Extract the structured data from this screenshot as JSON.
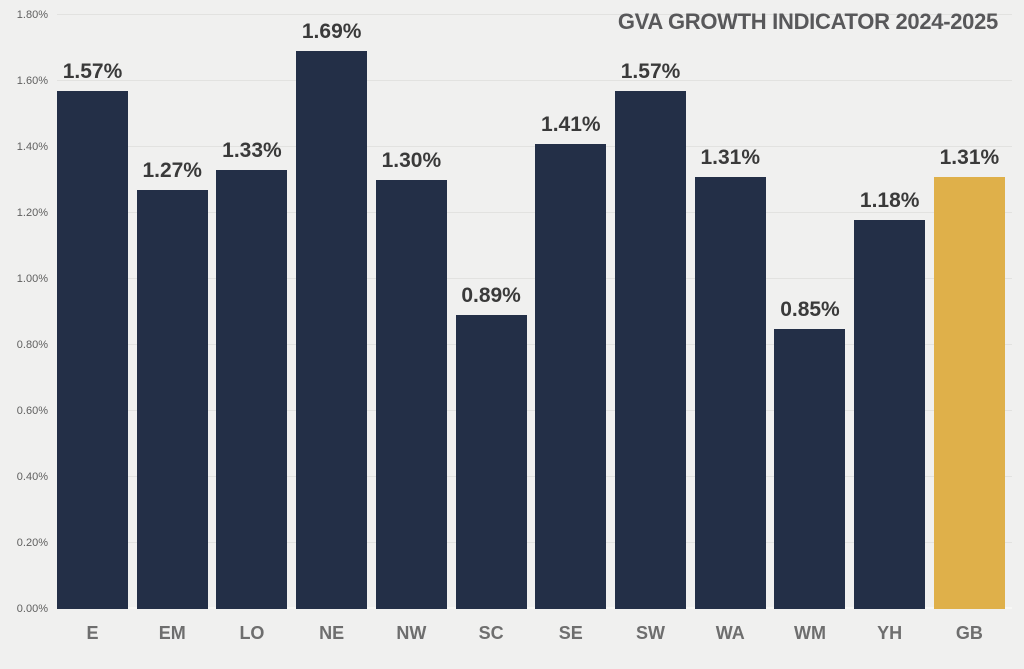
{
  "title": "GVA GROWTH INDICATOR 2024-2025",
  "chart_data": {
    "type": "bar",
    "title": "GVA GROWTH INDICATOR 2024-2025",
    "categories": [
      "E",
      "EM",
      "LO",
      "NE",
      "NW",
      "SC",
      "SE",
      "SW",
      "WA",
      "WM",
      "YH",
      "GB"
    ],
    "values": [
      1.57,
      1.27,
      1.33,
      1.69,
      1.3,
      0.89,
      1.41,
      1.57,
      1.31,
      0.85,
      1.18,
      1.31
    ],
    "value_labels": [
      "1.57%",
      "1.27%",
      "1.33%",
      "1.69%",
      "1.30%",
      "0.89%",
      "1.41%",
      "1.57%",
      "1.31%",
      "0.85%",
      "1.18%",
      "1.31%"
    ],
    "xlabel": "",
    "ylabel": "",
    "ylim": [
      0,
      1.8
    ],
    "y_ticks": [
      "0.00%",
      "0.20%",
      "0.40%",
      "0.60%",
      "0.80%",
      "1.00%",
      "1.20%",
      "1.40%",
      "1.60%",
      "1.80%"
    ],
    "grid": "horizontal-on",
    "legend": "none",
    "highlight_index": 11
  },
  "colors": {
    "bar": "#232f47",
    "highlight_bar": "#dfb04a",
    "background": "#f0f0ef",
    "gridline": "#e2e2e0",
    "baseline": "#f7f7f5",
    "title_text": "#58585a",
    "value_label_text": "#3a3a3a",
    "y_tick_text": "#5f5f5f",
    "x_tick_text": "#6e6e6e"
  }
}
